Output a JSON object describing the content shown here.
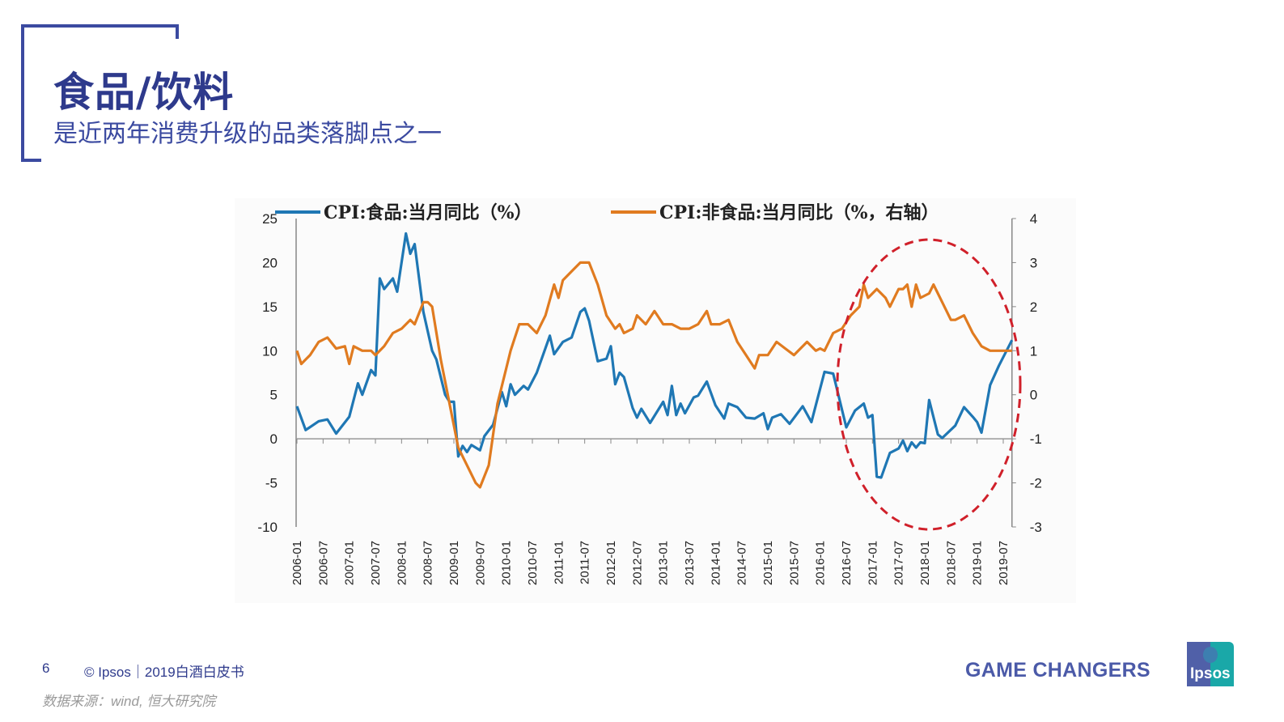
{
  "slide": {
    "title": "食品/饮料",
    "subtitle": "是近两年消费升级的品类落脚点之一",
    "page_number": "6",
    "copyright": "© Ipsos｜2019白酒白皮书",
    "source": "数据来源：wind, 恒大研究院",
    "tagline": "GAME CHANGERS",
    "logo_text": "Ipsos",
    "accent_color": "#2e3a8c"
  },
  "chart_data": {
    "type": "line",
    "title": "",
    "x_tick_labels": [
      "2006-01",
      "2006-07",
      "2007-01",
      "2007-07",
      "2008-01",
      "2008-07",
      "2009-01",
      "2009-07",
      "2010-01",
      "2010-07",
      "2011-01",
      "2011-07",
      "2012-01",
      "2012-07",
      "2013-01",
      "2013-07",
      "2014-01",
      "2014-07",
      "2015-01",
      "2015-07",
      "2016-01",
      "2016-07",
      "2017-01",
      "2017-07",
      "2018-01",
      "2018-07",
      "2019-01",
      "2019-07"
    ],
    "x_range": [
      "2006-01",
      "2019-09"
    ],
    "y_left": {
      "range": [
        -10,
        25
      ],
      "ticks": [
        "25",
        "20",
        "15",
        "10",
        "5",
        "0",
        "-5",
        "-10"
      ]
    },
    "y_right": {
      "range": [
        -3,
        4
      ],
      "ticks": [
        "4",
        "3",
        "2",
        "1",
        "0",
        "-1",
        "-2",
        "-3"
      ]
    },
    "grid": false,
    "legend_position": "top",
    "annotation": "red dashed ellipse highlighting 2016-07 to 2019-09",
    "annotation_color": "#d0202a",
    "series": [
      {
        "name": "CPI:食品:当月同比（%）",
        "axis": "left",
        "color": "#1f77b4",
        "points": [
          [
            "2006-01",
            3.7
          ],
          [
            "2006-03",
            1.0
          ],
          [
            "2006-06",
            2.0
          ],
          [
            "2006-08",
            2.2
          ],
          [
            "2006-10",
            0.6
          ],
          [
            "2007-01",
            2.5
          ],
          [
            "2007-03",
            6.3
          ],
          [
            "2007-04",
            5.0
          ],
          [
            "2007-06",
            7.8
          ],
          [
            "2007-07",
            7.2
          ],
          [
            "2007-08",
            18.2
          ],
          [
            "2007-09",
            17.0
          ],
          [
            "2007-11",
            18.2
          ],
          [
            "2007-12",
            16.7
          ],
          [
            "2008-02",
            23.3
          ],
          [
            "2008-03",
            21.0
          ],
          [
            "2008-04",
            22.1
          ],
          [
            "2008-06",
            14.4
          ],
          [
            "2008-08",
            10.0
          ],
          [
            "2008-09",
            9.0
          ],
          [
            "2008-11",
            5.0
          ],
          [
            "2008-12",
            4.2
          ],
          [
            "2009-01",
            4.2
          ],
          [
            "2009-02",
            -2.0
          ],
          [
            "2009-03",
            -0.8
          ],
          [
            "2009-04",
            -1.5
          ],
          [
            "2009-05",
            -0.7
          ],
          [
            "2009-07",
            -1.3
          ],
          [
            "2009-08",
            0.3
          ],
          [
            "2009-10",
            1.6
          ],
          [
            "2009-12",
            5.3
          ],
          [
            "2010-01",
            3.7
          ],
          [
            "2010-02",
            6.2
          ],
          [
            "2010-03",
            5.0
          ],
          [
            "2010-05",
            6.0
          ],
          [
            "2010-06",
            5.6
          ],
          [
            "2010-08",
            7.5
          ],
          [
            "2010-11",
            11.7
          ],
          [
            "2010-12",
            9.6
          ],
          [
            "2011-02",
            11.0
          ],
          [
            "2011-04",
            11.5
          ],
          [
            "2011-06",
            14.4
          ],
          [
            "2011-07",
            14.8
          ],
          [
            "2011-08",
            13.4
          ],
          [
            "2011-10",
            8.8
          ],
          [
            "2011-12",
            9.1
          ],
          [
            "2012-01",
            10.5
          ],
          [
            "2012-02",
            6.2
          ],
          [
            "2012-03",
            7.5
          ],
          [
            "2012-04",
            7.0
          ],
          [
            "2012-06",
            3.5
          ],
          [
            "2012-07",
            2.4
          ],
          [
            "2012-08",
            3.4
          ],
          [
            "2012-10",
            1.8
          ],
          [
            "2013-01",
            4.2
          ],
          [
            "2013-02",
            2.7
          ],
          [
            "2013-03",
            6.0
          ],
          [
            "2013-04",
            2.7
          ],
          [
            "2013-05",
            4.0
          ],
          [
            "2013-06",
            2.9
          ],
          [
            "2013-08",
            4.7
          ],
          [
            "2013-09",
            4.9
          ],
          [
            "2013-11",
            6.5
          ],
          [
            "2014-01",
            3.8
          ],
          [
            "2014-03",
            2.3
          ],
          [
            "2014-04",
            4.0
          ],
          [
            "2014-06",
            3.6
          ],
          [
            "2014-08",
            2.4
          ],
          [
            "2014-10",
            2.3
          ],
          [
            "2014-12",
            2.9
          ],
          [
            "2015-01",
            1.1
          ],
          [
            "2015-02",
            2.4
          ],
          [
            "2015-04",
            2.8
          ],
          [
            "2015-06",
            1.7
          ],
          [
            "2015-09",
            3.7
          ],
          [
            "2015-11",
            1.9
          ],
          [
            "2016-02",
            7.6
          ],
          [
            "2016-04",
            7.4
          ],
          [
            "2016-07",
            1.3
          ],
          [
            "2016-09",
            3.2
          ],
          [
            "2016-11",
            4.0
          ],
          [
            "2016-12",
            2.4
          ],
          [
            "2017-01",
            2.7
          ],
          [
            "2017-02",
            -4.3
          ],
          [
            "2017-03",
            -4.4
          ],
          [
            "2017-05",
            -1.6
          ],
          [
            "2017-07",
            -1.1
          ],
          [
            "2017-08",
            -0.2
          ],
          [
            "2017-09",
            -1.4
          ],
          [
            "2017-10",
            -0.4
          ],
          [
            "2017-11",
            -1.0
          ],
          [
            "2017-12",
            -0.4
          ],
          [
            "2018-01",
            -0.5
          ],
          [
            "2018-02",
            4.4
          ],
          [
            "2018-04",
            0.5
          ],
          [
            "2018-05",
            0.1
          ],
          [
            "2018-08",
            1.5
          ],
          [
            "2018-10",
            3.6
          ],
          [
            "2018-12",
            2.5
          ],
          [
            "2019-01",
            1.9
          ],
          [
            "2019-02",
            0.7
          ],
          [
            "2019-04",
            6.1
          ],
          [
            "2019-06",
            8.3
          ],
          [
            "2019-09",
            11.2
          ]
        ]
      },
      {
        "name": "CPI:非食品:当月同比（%，右轴）",
        "axis": "right",
        "color": "#e07b20",
        "points": [
          [
            "2006-01",
            1.0
          ],
          [
            "2006-02",
            0.7
          ],
          [
            "2006-04",
            0.9
          ],
          [
            "2006-06",
            1.2
          ],
          [
            "2006-08",
            1.3
          ],
          [
            "2006-10",
            1.05
          ],
          [
            "2006-12",
            1.1
          ],
          [
            "2007-01",
            0.7
          ],
          [
            "2007-02",
            1.1
          ],
          [
            "2007-04",
            1.0
          ],
          [
            "2007-06",
            1.0
          ],
          [
            "2007-07",
            0.9
          ],
          [
            "2007-09",
            1.1
          ],
          [
            "2007-11",
            1.4
          ],
          [
            "2008-01",
            1.5
          ],
          [
            "2008-03",
            1.7
          ],
          [
            "2008-04",
            1.6
          ],
          [
            "2008-06",
            2.1
          ],
          [
            "2008-07",
            2.1
          ],
          [
            "2008-08",
            2.0
          ],
          [
            "2008-10",
            0.8
          ],
          [
            "2008-12",
            -0.2
          ],
          [
            "2009-02",
            -1.2
          ],
          [
            "2009-04",
            -1.6
          ],
          [
            "2009-06",
            -2.0
          ],
          [
            "2009-07",
            -2.1
          ],
          [
            "2009-09",
            -1.6
          ],
          [
            "2009-11",
            -0.2
          ],
          [
            "2010-01",
            0.6
          ],
          [
            "2010-02",
            1.0
          ],
          [
            "2010-04",
            1.6
          ],
          [
            "2010-06",
            1.6
          ],
          [
            "2010-08",
            1.4
          ],
          [
            "2010-10",
            1.8
          ],
          [
            "2010-12",
            2.5
          ],
          [
            "2011-01",
            2.2
          ],
          [
            "2011-02",
            2.6
          ],
          [
            "2011-04",
            2.8
          ],
          [
            "2011-06",
            3.0
          ],
          [
            "2011-08",
            3.0
          ],
          [
            "2011-10",
            2.5
          ],
          [
            "2011-12",
            1.8
          ],
          [
            "2012-02",
            1.5
          ],
          [
            "2012-03",
            1.6
          ],
          [
            "2012-04",
            1.4
          ],
          [
            "2012-06",
            1.5
          ],
          [
            "2012-07",
            1.8
          ],
          [
            "2012-09",
            1.6
          ],
          [
            "2012-11",
            1.9
          ],
          [
            "2013-01",
            1.6
          ],
          [
            "2013-03",
            1.6
          ],
          [
            "2013-05",
            1.5
          ],
          [
            "2013-07",
            1.5
          ],
          [
            "2013-09",
            1.6
          ],
          [
            "2013-11",
            1.9
          ],
          [
            "2013-12",
            1.6
          ],
          [
            "2014-02",
            1.6
          ],
          [
            "2014-04",
            1.7
          ],
          [
            "2014-06",
            1.2
          ],
          [
            "2014-08",
            0.9
          ],
          [
            "2014-10",
            0.6
          ],
          [
            "2014-11",
            0.9
          ],
          [
            "2015-01",
            0.9
          ],
          [
            "2015-03",
            1.2
          ],
          [
            "2015-05",
            1.05
          ],
          [
            "2015-07",
            0.9
          ],
          [
            "2015-08",
            1.0
          ],
          [
            "2015-10",
            1.2
          ],
          [
            "2015-12",
            1.0
          ],
          [
            "2016-01",
            1.05
          ],
          [
            "2016-02",
            1.0
          ],
          [
            "2016-04",
            1.4
          ],
          [
            "2016-06",
            1.5
          ],
          [
            "2016-08",
            1.8
          ],
          [
            "2016-10",
            2.0
          ],
          [
            "2016-11",
            2.5
          ],
          [
            "2016-12",
            2.2
          ],
          [
            "2017-02",
            2.4
          ],
          [
            "2017-04",
            2.2
          ],
          [
            "2017-05",
            2.0
          ],
          [
            "2017-07",
            2.4
          ],
          [
            "2017-08",
            2.4
          ],
          [
            "2017-09",
            2.5
          ],
          [
            "2017-10",
            2.0
          ],
          [
            "2017-11",
            2.5
          ],
          [
            "2017-12",
            2.2
          ],
          [
            "2018-02",
            2.3
          ],
          [
            "2018-03",
            2.5
          ],
          [
            "2018-04",
            2.3
          ],
          [
            "2018-05",
            2.1
          ],
          [
            "2018-07",
            1.7
          ],
          [
            "2018-08",
            1.7
          ],
          [
            "2018-10",
            1.8
          ],
          [
            "2018-12",
            1.4
          ],
          [
            "2019-02",
            1.1
          ],
          [
            "2019-04",
            1.0
          ],
          [
            "2019-09",
            1.0
          ]
        ]
      }
    ]
  }
}
